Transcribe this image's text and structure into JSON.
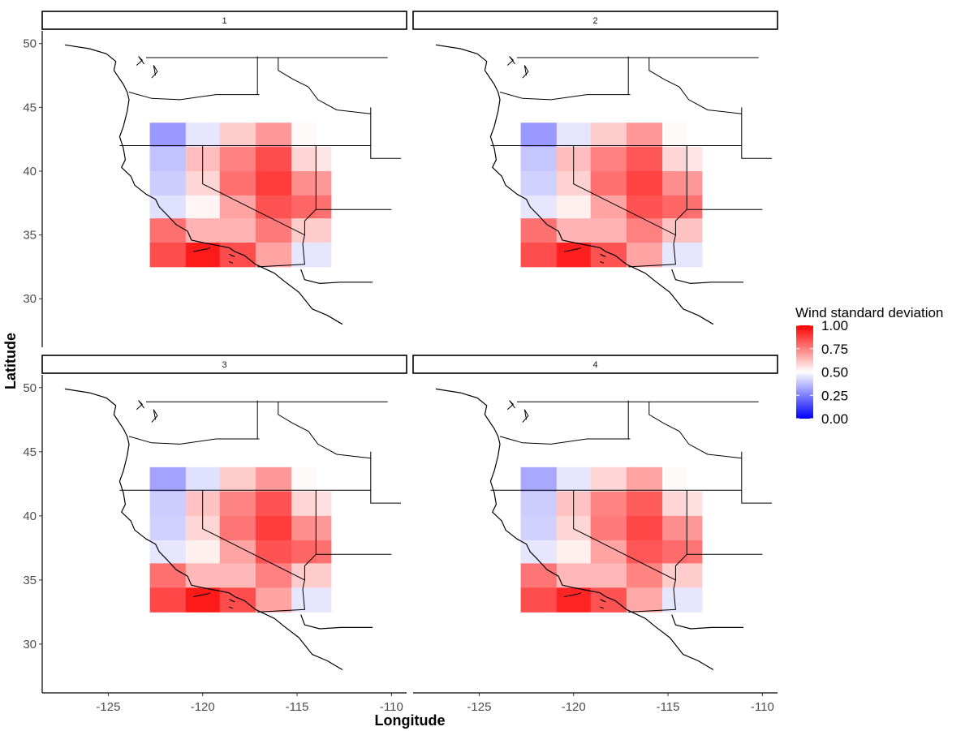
{
  "chart_data": {
    "type": "heatmap",
    "xlabel": "Longitude",
    "ylabel": "Latitude",
    "xlim": [
      -128.5,
      -109.2
    ],
    "ylim": [
      26.2,
      51.0
    ],
    "x_ticks": [
      -125,
      -120,
      -115,
      -110
    ],
    "y_ticks": [
      30,
      35,
      40,
      45,
      50
    ],
    "x_tick_labels": [
      "-125",
      "-120",
      "-115",
      "-110"
    ],
    "y_tick_labels": [
      "30",
      "35",
      "40",
      "45",
      "50"
    ],
    "x_centers": [
      -121.875,
      -120.0,
      -118.125,
      -116.25,
      -114.375,
      -113.5
    ],
    "y_centers": [
      42.75,
      40.9,
      39.1,
      37.2,
      35.3,
      33.4
    ],
    "legend": {
      "title": "Wind standard deviation",
      "labels": [
        "1.00",
        "0.75",
        "0.50",
        "0.25",
        "0.00"
      ],
      "breaks": [
        1.0,
        0.75,
        0.5,
        0.25,
        0.0
      ],
      "low_color": "#0000ff",
      "mid_color": "#ffffff",
      "high_color": "#ff0000",
      "placement": "right"
    },
    "panels": [
      {
        "label": "1",
        "z": [
          [
            0.3,
            0.45,
            0.6,
            0.7,
            0.51,
            null
          ],
          [
            0.38,
            0.63,
            0.75,
            0.85,
            0.58,
            0.55
          ],
          [
            0.4,
            0.58,
            0.78,
            0.88,
            0.72,
            0.7
          ],
          [
            0.44,
            0.52,
            0.68,
            0.84,
            0.8,
            0.78
          ],
          [
            0.78,
            0.65,
            0.65,
            0.76,
            0.6,
            0.6
          ],
          [
            0.85,
            0.95,
            0.85,
            0.68,
            0.45,
            0.45
          ]
        ]
      },
      {
        "label": "2",
        "z": [
          [
            0.3,
            0.45,
            0.6,
            0.7,
            0.51,
            null
          ],
          [
            0.39,
            0.63,
            0.75,
            0.83,
            0.58,
            0.55
          ],
          [
            0.41,
            0.59,
            0.78,
            0.87,
            0.72,
            0.7
          ],
          [
            0.45,
            0.53,
            0.68,
            0.84,
            0.8,
            0.78
          ],
          [
            0.78,
            0.65,
            0.65,
            0.75,
            0.62,
            0.62
          ],
          [
            0.85,
            0.94,
            0.84,
            0.68,
            0.45,
            0.45
          ]
        ]
      },
      {
        "label": "3",
        "z": [
          [
            0.32,
            0.44,
            0.6,
            0.7,
            0.51,
            null
          ],
          [
            0.4,
            0.62,
            0.74,
            0.84,
            0.58,
            0.56
          ],
          [
            0.41,
            0.58,
            0.77,
            0.88,
            0.72,
            0.7
          ],
          [
            0.45,
            0.53,
            0.68,
            0.84,
            0.8,
            0.78
          ],
          [
            0.78,
            0.64,
            0.64,
            0.75,
            0.6,
            0.6
          ],
          [
            0.86,
            0.95,
            0.85,
            0.68,
            0.45,
            0.45
          ]
        ]
      },
      {
        "label": "4",
        "z": [
          [
            0.33,
            0.45,
            0.58,
            0.68,
            0.51,
            null
          ],
          [
            0.4,
            0.62,
            0.74,
            0.82,
            0.58,
            0.56
          ],
          [
            0.41,
            0.58,
            0.76,
            0.86,
            0.72,
            0.7
          ],
          [
            0.45,
            0.53,
            0.68,
            0.83,
            0.79,
            0.77
          ],
          [
            0.77,
            0.64,
            0.64,
            0.74,
            0.6,
            0.6
          ],
          [
            0.85,
            0.93,
            0.84,
            0.67,
            0.45,
            0.45
          ]
        ]
      }
    ]
  }
}
